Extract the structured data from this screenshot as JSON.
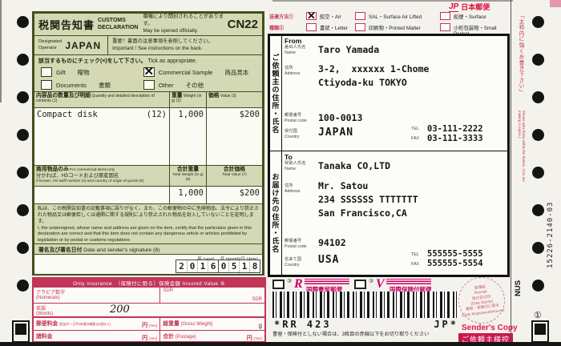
{
  "brand": {
    "logo": "JP",
    "name": "日本郵便"
  },
  "cn22": {
    "title_jp": "税関告知書",
    "title_en_l1": "CUSTOMS",
    "title_en_l2": "DECLARATION",
    "open_jp": "職権により開封されることがあります。",
    "open_en": "May be opened officially.",
    "code": "CN22",
    "designated_l1": "Designated",
    "designated_l2": "Operator",
    "designated_value": "JAPAN",
    "important_jp": "重要！裏面の注意事項を参照してください。",
    "important_en": "Important !  See instructions on the back.",
    "tick_jp": "該当するものにチェック(×)をして下さい。",
    "tick_en": "Tick as appropriate.",
    "options": [
      {
        "en": "Gift",
        "jp": "贈物",
        "mark": ""
      },
      {
        "en": "Commercial Sample",
        "jp": "商品見本",
        "mark": "✕"
      },
      {
        "en": "Documents",
        "jp": "書類",
        "mark": ""
      },
      {
        "en": "Other",
        "jp": "その他",
        "mark": ""
      }
    ],
    "table": {
      "desc_jp": "内容品の数量及び明細",
      "desc_en": "Quantity and detailed description of contents (1)",
      "weight_jp": "重量",
      "weight_en": "Weight (in g) (2)",
      "value_jp": "価格",
      "value_en": "Value (3)",
      "row_desc": "Compact disk",
      "row_qty": "(12)",
      "row_weight": "1,000",
      "row_value": "$200"
    },
    "commercial": {
      "jp1": "商用物品のみ",
      "en1": "For commercial items only",
      "jp2": "分かれば、HSコードおよび原産国名",
      "en2": "If known, HS tariff number (4) and country of origin of goods (5)",
      "tw_jp": "合計重量",
      "tw_en": "Total Weight (in g) (6)",
      "tv_jp": "合計価格",
      "tv_en": "Total Value (7)",
      "total_weight": "1,000",
      "total_value": "$200"
    },
    "decl_jp": "私は、この税関告知書の記載事項に誤りがなく、また、この郵便物の中に危険物品、法令により禁止された物品又は郵便若しくは通関に関する規則により禁止された物品を封入していないことを証明します。",
    "decl_en": "I, the undersigned, whose name and address are given on the item, certify that the particulars given in this declaration are correct and that this item does not contain any dangerous article or articles prohibited by legislation or by postal or customs regulations",
    "sign_jp": "署名及び署名日付",
    "sign_en": "Date and sender's signature (8)",
    "date_units": "年 (year)　 月 (month)日 (date)",
    "date_digits": [
      "2",
      "0",
      "1",
      "6",
      "0",
      "5",
      "1",
      "8"
    ]
  },
  "insurance": {
    "header": "Only insurance　（保険付に限る）保険金額 Insured Value ④",
    "numerals_jp": "アラビア数字",
    "numerals_en": "(Numerals)",
    "sdr1": "SDR",
    "sdr2": "SDR",
    "words_jp": "英語",
    "words_en": "(Words)",
    "words_value": "200",
    "postage_jp": "郵便料金",
    "postage_note": "差出外ー万円未満(0端数は4捨5入)",
    "yen": "円",
    "yen_unit": "(Yen)",
    "gross_jp": "総重量",
    "gross_en": "(Gross Weight)",
    "gram": "g",
    "fees_jp": "諸料金",
    "total_jp": "合計",
    "total_en": "(Postage)"
  },
  "dispatch": {
    "method_label": "送達方法①",
    "methods": [
      {
        "label": "航空・Air",
        "mark": "✕"
      },
      {
        "label": "SAL・Surface Air Lifted",
        "mark": ""
      },
      {
        "label": "船便・Surface",
        "mark": ""
      }
    ],
    "type_label": "種類②",
    "types": [
      {
        "label": "書状・Letter",
        "mark": ""
      },
      {
        "label": "印刷物・Printed Matter",
        "mark": ""
      },
      {
        "label": "小形包装物・Small Packet",
        "mark": ""
      }
    ]
  },
  "from": {
    "heading": "From",
    "vertical": "ご依頼主の住所・氏名",
    "name_jp": "差出人氏名",
    "name_en": "Name",
    "name": "Taro Yamada",
    "addr_jp": "住所",
    "addr_en": "Address",
    "addr1": "3-2,  xxxxxx 1-Chome",
    "addr2": "Ctiyoda-ku TOKYO",
    "postal_jp": "郵便番号",
    "postal_en": "Postal code",
    "postal": "100-0013",
    "country_jp": "受付国",
    "country_en": "Country",
    "country": "JAPAN",
    "tel_label": "TEL",
    "tel": "03-111-2222",
    "fax_label": "FAX",
    "fax": "03-111-3333"
  },
  "to": {
    "heading": "To",
    "vertical": "お届け先の住所・氏名",
    "name_jp": "受取人氏名",
    "name_en": "Name",
    "name": "Tanaka CO,LTD",
    "addr_jp": "住所",
    "addr_en": "Address",
    "addr1": "Mr. Satou",
    "addr2": "234 SSSSSS TTTTTTT",
    "addr3": "San Francisco,CA",
    "postal_jp": "郵便番号",
    "postal_en": "Postal code",
    "postal": "94102",
    "country_jp": "名あて国",
    "country_en": "Country",
    "country": "USA",
    "tel_label": "TEL",
    "tel": "555555-5555",
    "fax_label": "FAX",
    "fax": "555555-5554"
  },
  "services": {
    "reg_num": "③",
    "reg_logo": "R",
    "reg_label": "国際書留郵便",
    "ins_num": "③",
    "ins_logo": "V",
    "ins_label": "国際保険付郵便"
  },
  "barcode": {
    "left": "*RR 423",
    "right": "JP*"
  },
  "cut_note": "書留・保険付としない場合は、3枚目の赤線以下をお切り取りください",
  "receipt": {
    "l1": "受領証",
    "l2": "Receipt",
    "l3": "受付日付印",
    "l4": "(Date Stamp)",
    "l5": "書留・保険付に限る",
    "l6": "(Only Registered/Insured)"
  },
  "footer": {
    "senders_copy": "Sender's Copy",
    "senders_copy_jp": "ご依頼主様控",
    "circled": "①"
  },
  "edge": {
    "right_note_jp": "「太枠内に強くお書き下さい」",
    "right_note_en": "Please write firmly within the frames. (You are making 3 copies.)",
    "serial": "15226-2140-03",
    "nus": "NUS"
  }
}
